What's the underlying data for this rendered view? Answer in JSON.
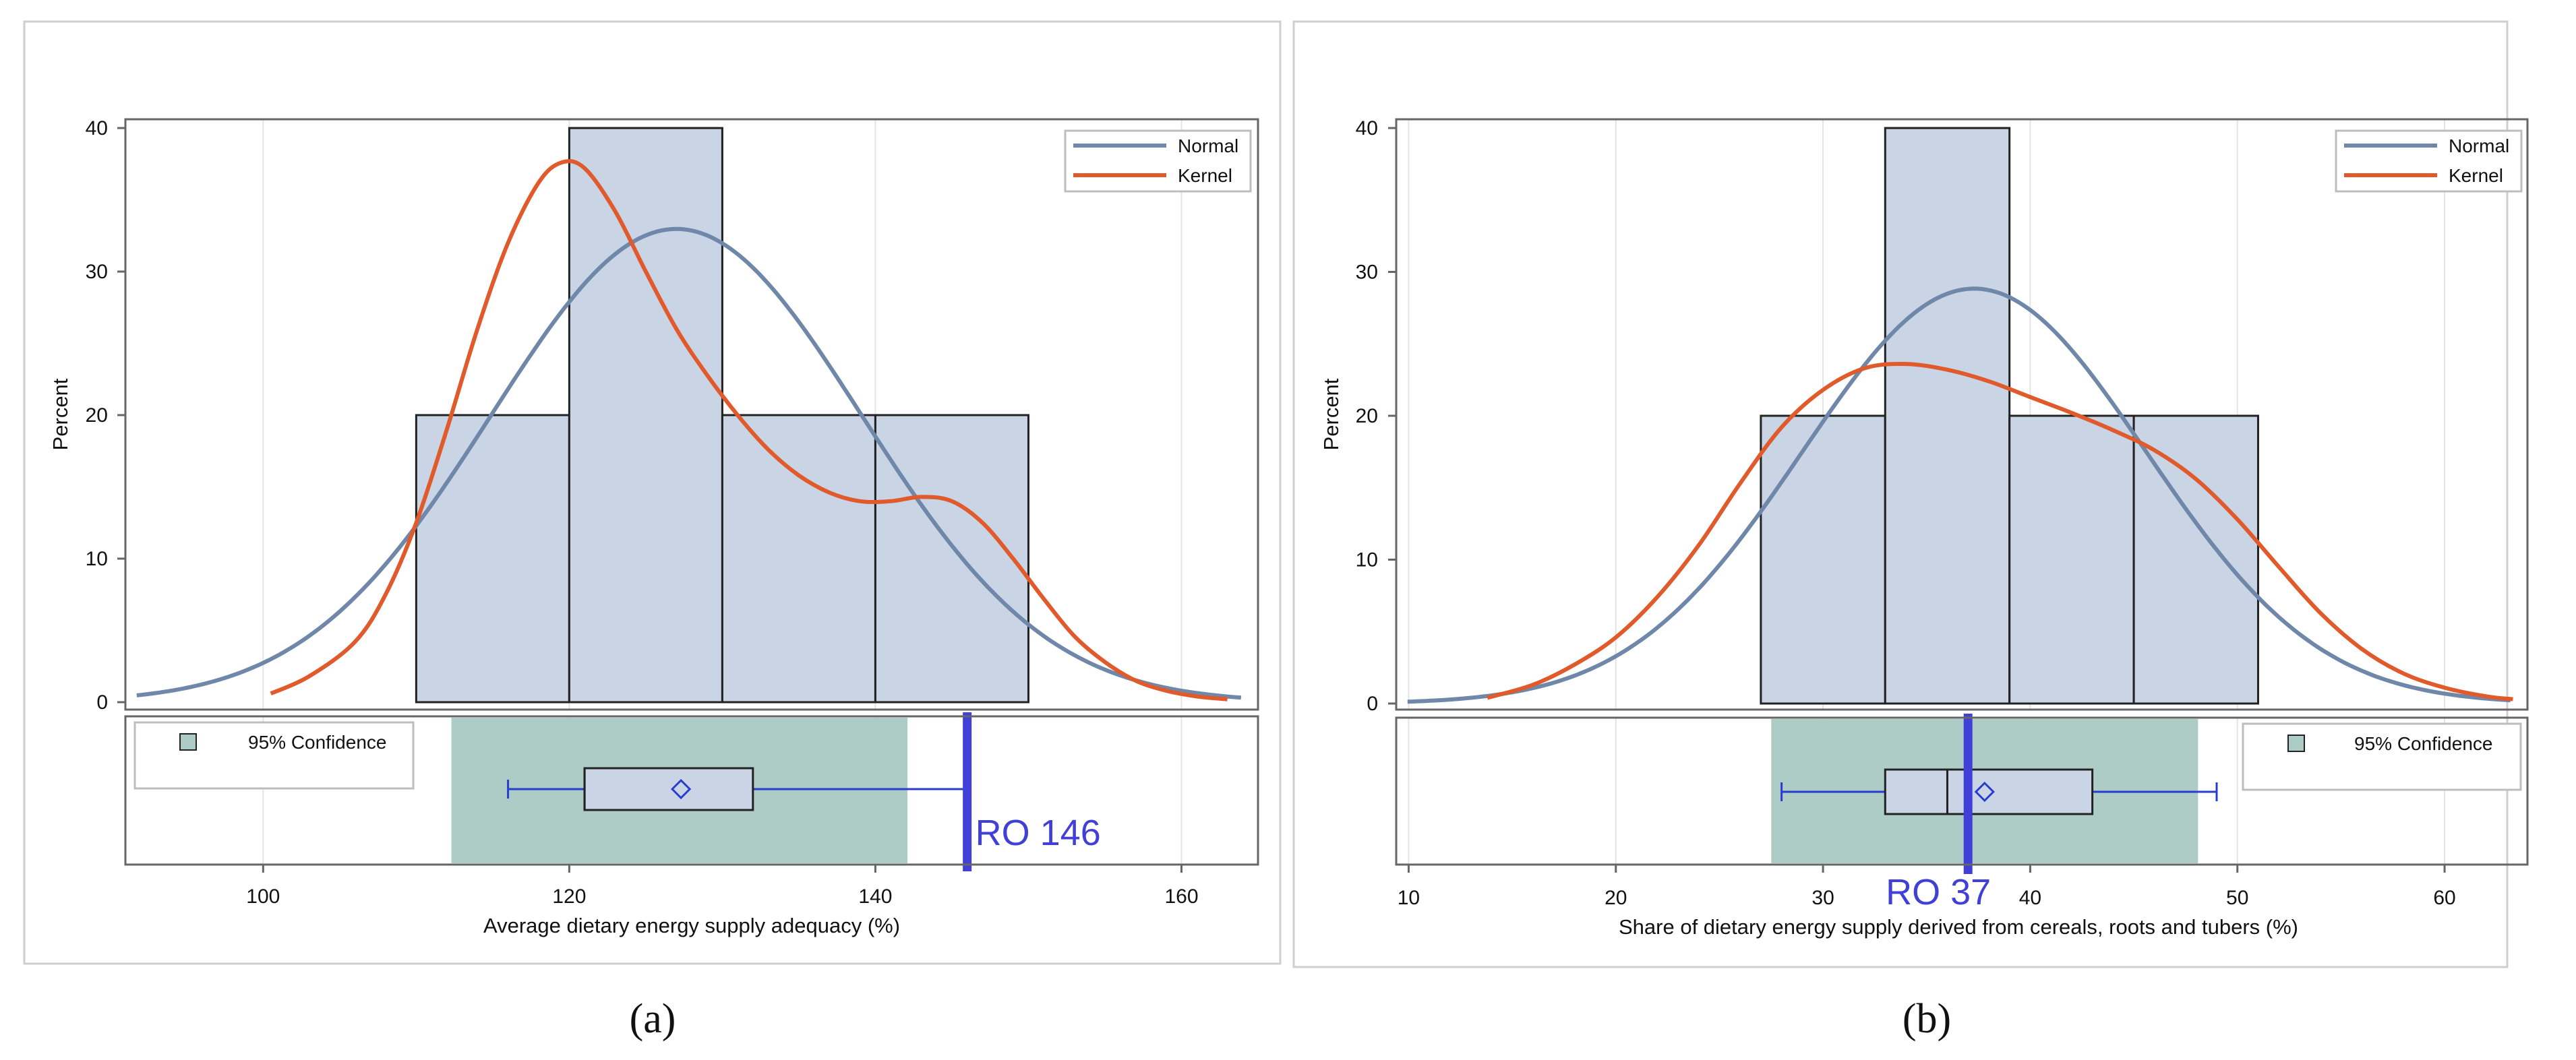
{
  "figure": {
    "panels": [
      "(a)",
      "(b)"
    ]
  },
  "colors": {
    "bar_fill": "#c9d4e5",
    "bar_stroke": "#222222",
    "normal": "#6f87a8",
    "kernel": "#e05a2b",
    "ci_fill": "#acccc5",
    "box_stroke": "#2a3cd0",
    "ro_line": "#4040d8",
    "frame": "#cfcfcf",
    "axis": "#666666",
    "grid": "#e4e4e4"
  },
  "chart_data": [
    {
      "type": "bar",
      "subtype": "histogram",
      "panel_label": "(a)",
      "xlabel": "Average dietary energy supply adequacy (%)",
      "ylabel": "Percent",
      "xlim": [
        91,
        165
      ],
      "ylim": [
        0,
        40
      ],
      "xticks": [
        100,
        120,
        140,
        160
      ],
      "xtick_labels": [
        "100",
        "120",
        "140",
        "160"
      ],
      "yticks": [
        0,
        10,
        20,
        30,
        40
      ],
      "ytick_labels": [
        "0",
        "10",
        "20",
        "30",
        "40"
      ],
      "bins": [
        [
          110,
          120
        ],
        [
          120,
          130
        ],
        [
          130,
          140
        ],
        [
          140,
          150
        ]
      ],
      "values": [
        20,
        40,
        20,
        20
      ],
      "legend": {
        "position": "top-right",
        "entries": [
          "Normal",
          "Kernel"
        ]
      },
      "normal": {
        "mean": 127,
        "sd": 12.1,
        "scale": 10
      },
      "kernel": {
        "x": [
          100.5,
          103,
          106,
          108,
          110,
          112,
          114,
          116,
          118,
          119.5,
          121,
          123,
          125,
          127,
          129,
          131,
          133,
          135,
          137,
          139,
          141,
          143,
          145,
          147,
          149,
          151,
          153,
          155,
          157,
          159,
          161,
          163
        ],
        "y": [
          0.6,
          1.8,
          4.2,
          7.5,
          12.5,
          19,
          26,
          32,
          36.2,
          37.6,
          37.2,
          34.2,
          30,
          26,
          22.8,
          20,
          17.6,
          15.8,
          14.6,
          14,
          14,
          14.3,
          14,
          12.5,
          10,
          7.2,
          4.6,
          2.8,
          1.5,
          0.8,
          0.4,
          0.2
        ]
      },
      "ci_legend": "95% Confidence",
      "ci_legend_position": "top-left",
      "confidence_interval": [
        112.3,
        142.1
      ],
      "boxplot": {
        "whisker_low": 116,
        "q1": 121,
        "median": 121,
        "mean": 127.3,
        "q3": 132,
        "whisker_high": 146
      },
      "ro_line": {
        "value": 146,
        "label": "RO  146"
      }
    },
    {
      "type": "bar",
      "subtype": "histogram",
      "panel_label": "(b)",
      "xlabel": "Share of dietary energy supply derived from cereals, roots and tubers (%)",
      "ylabel": "Percent",
      "xlim": [
        9.4,
        64
      ],
      "ylim": [
        0,
        40
      ],
      "xticks": [
        10,
        20,
        30,
        40,
        50,
        60
      ],
      "xtick_labels": [
        "10",
        "20",
        "30",
        "40",
        "50",
        "60"
      ],
      "yticks": [
        0,
        10,
        20,
        30,
        40
      ],
      "ytick_labels": [
        "0",
        "10",
        "20",
        "30",
        "40"
      ],
      "bins": [
        [
          27,
          33
        ],
        [
          33,
          39
        ],
        [
          39,
          45
        ],
        [
          45,
          51
        ]
      ],
      "values": [
        20,
        40,
        20,
        20
      ],
      "legend": {
        "position": "top-right",
        "entries": [
          "Normal",
          "Kernel"
        ]
      },
      "normal": {
        "mean": 37.3,
        "sd": 8.3,
        "scale": 6
      },
      "kernel": {
        "x": [
          13.8,
          16,
          18,
          20,
          22,
          24,
          26,
          28,
          30,
          32,
          34,
          36,
          38,
          40,
          42,
          44,
          46,
          48,
          50,
          52,
          54,
          56,
          58,
          60,
          62,
          63.3
        ],
        "y": [
          0.4,
          1.3,
          2.7,
          4.6,
          7.4,
          11,
          15.3,
          19.2,
          21.8,
          23.3,
          23.6,
          23.2,
          22.4,
          21.3,
          20.2,
          19,
          17.6,
          15.6,
          12.8,
          9.5,
          6.3,
          3.8,
          2.1,
          1.1,
          0.5,
          0.3
        ]
      },
      "ci_legend": "95% Confidence",
      "ci_legend_position": "top-right",
      "confidence_interval": [
        27.5,
        48.1
      ],
      "boxplot": {
        "whisker_low": 28,
        "q1": 33,
        "median": 36,
        "mean": 37.8,
        "q3": 43,
        "whisker_high": 49
      },
      "ro_line": {
        "value": 37,
        "label": "RO  37"
      }
    }
  ]
}
